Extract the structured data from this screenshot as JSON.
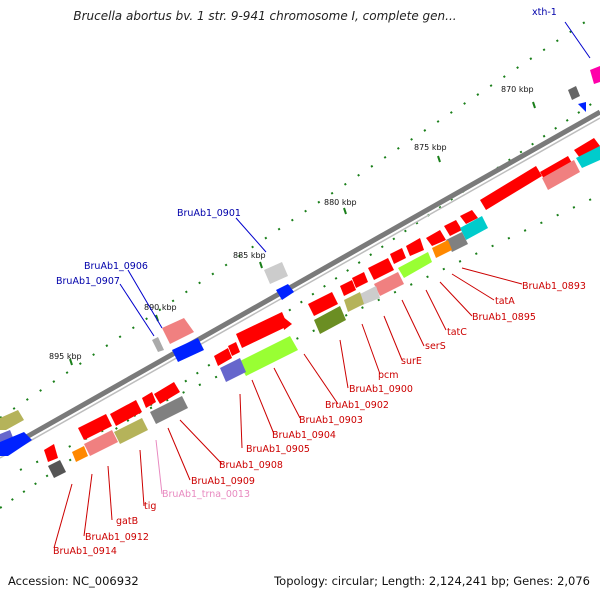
{
  "title": "Brucella abortus bv. 1 str. 9-941 chromosome I, complete gen...",
  "footer": {
    "accession": "Accession: NC_006932",
    "summary": "Topology: circular; Length: 2,124,241 bp; Genes: 2,076"
  },
  "ticks": {
    "t870": "870 kbp",
    "t875": "875 kbp",
    "t880": "880 kbp",
    "t885": "885 kbp",
    "t890": "890 kbp",
    "t895": "895 kbp"
  },
  "colors": {
    "gene_red": "#ff0000",
    "pink": "#f08080",
    "gray": "#808080",
    "olive": "#b5b35a",
    "lime": "#99ff33",
    "blue": "#0022ff",
    "purple": "#6666cc",
    "cyan": "#00cccc",
    "orange": "#ff8800",
    "magenta": "#ff00aa",
    "green_dot": "#1a7f1a",
    "label_blue": "#0000aa",
    "label_red": "#cc0000",
    "label_pink": "#e88ac0"
  },
  "labels": {
    "xth1": "xth-1",
    "b0901": "BruAb1_0901",
    "b0906": "BruAb1_0906",
    "b0907": "BruAb1_0907",
    "b0893": "BruAb1_0893",
    "tatA": "tatA",
    "b0895": "BruAb1_0895",
    "tatC": "tatC",
    "serS": "serS",
    "surE": "surE",
    "pcm": "pcm",
    "b0900": "BruAb1_0900",
    "b0902": "BruAb1_0902",
    "b0903": "BruAb1_0903",
    "b0904": "BruAb1_0904",
    "b0905": "BruAb1_0905",
    "b0908": "BruAb1_0908",
    "b0909": "BruAb1_0909",
    "trna0013": "BruAb1_trna_0013",
    "tig": "tig",
    "gatB": "gatB",
    "b0912": "BruAb1_0912",
    "b0914": "BruAb1_0914"
  }
}
